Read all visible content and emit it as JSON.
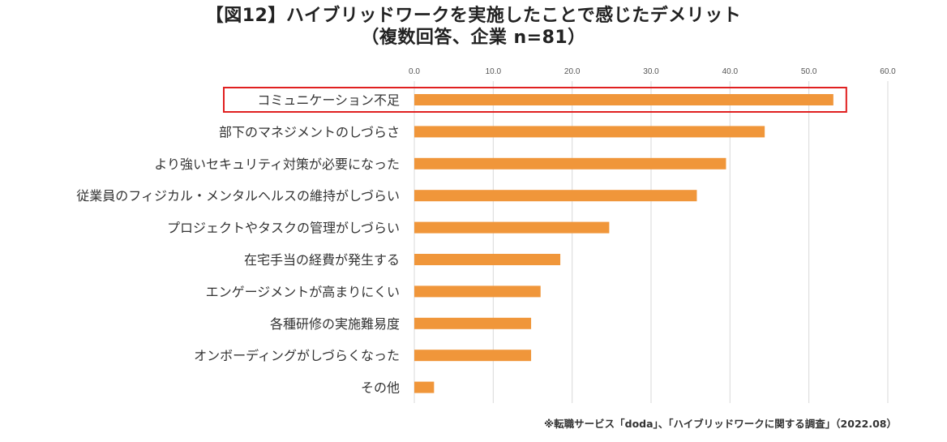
{
  "chart_data": {
    "type": "bar",
    "orientation": "horizontal",
    "title": "【図12】ハイブリッドワークを実施したことで感じたデメリット",
    "subtitle": "（複数回答、企業 n=81）",
    "categories": [
      "コミュニケーション不足",
      "部下のマネジメントのしづらさ",
      "より強いセキュリティ対策が必要になった",
      "従業員のフィジカル・メンタルヘルスの維持がしづらい",
      "プロジェクトやタスクの管理がしづらい",
      "在宅手当の経費が発生する",
      "エンゲージメントが高まりにくい",
      "各種研修の実施難易度",
      "オンボーディングがしづらくなった",
      "その他"
    ],
    "values": [
      53.1,
      44.4,
      39.5,
      35.8,
      24.7,
      18.5,
      16.0,
      14.8,
      14.8,
      2.5
    ],
    "xlim": [
      0,
      60
    ],
    "ticks": [
      0,
      10,
      20,
      30,
      40,
      50,
      60
    ],
    "tick_labels": [
      "0.0",
      "10.0",
      "20.0",
      "30.0",
      "40.0",
      "50.0",
      "60.0"
    ],
    "axis_position": "top",
    "grid": true,
    "highlighted_category": "コミュニケーション不足",
    "bar_color": "#F0963A",
    "highlight_color": "#E02020",
    "grid_color": "#D9D9D9"
  },
  "source_note": "※転職サービス「doda」、「ハイブリッドワークに関する調査」（2022.08）"
}
